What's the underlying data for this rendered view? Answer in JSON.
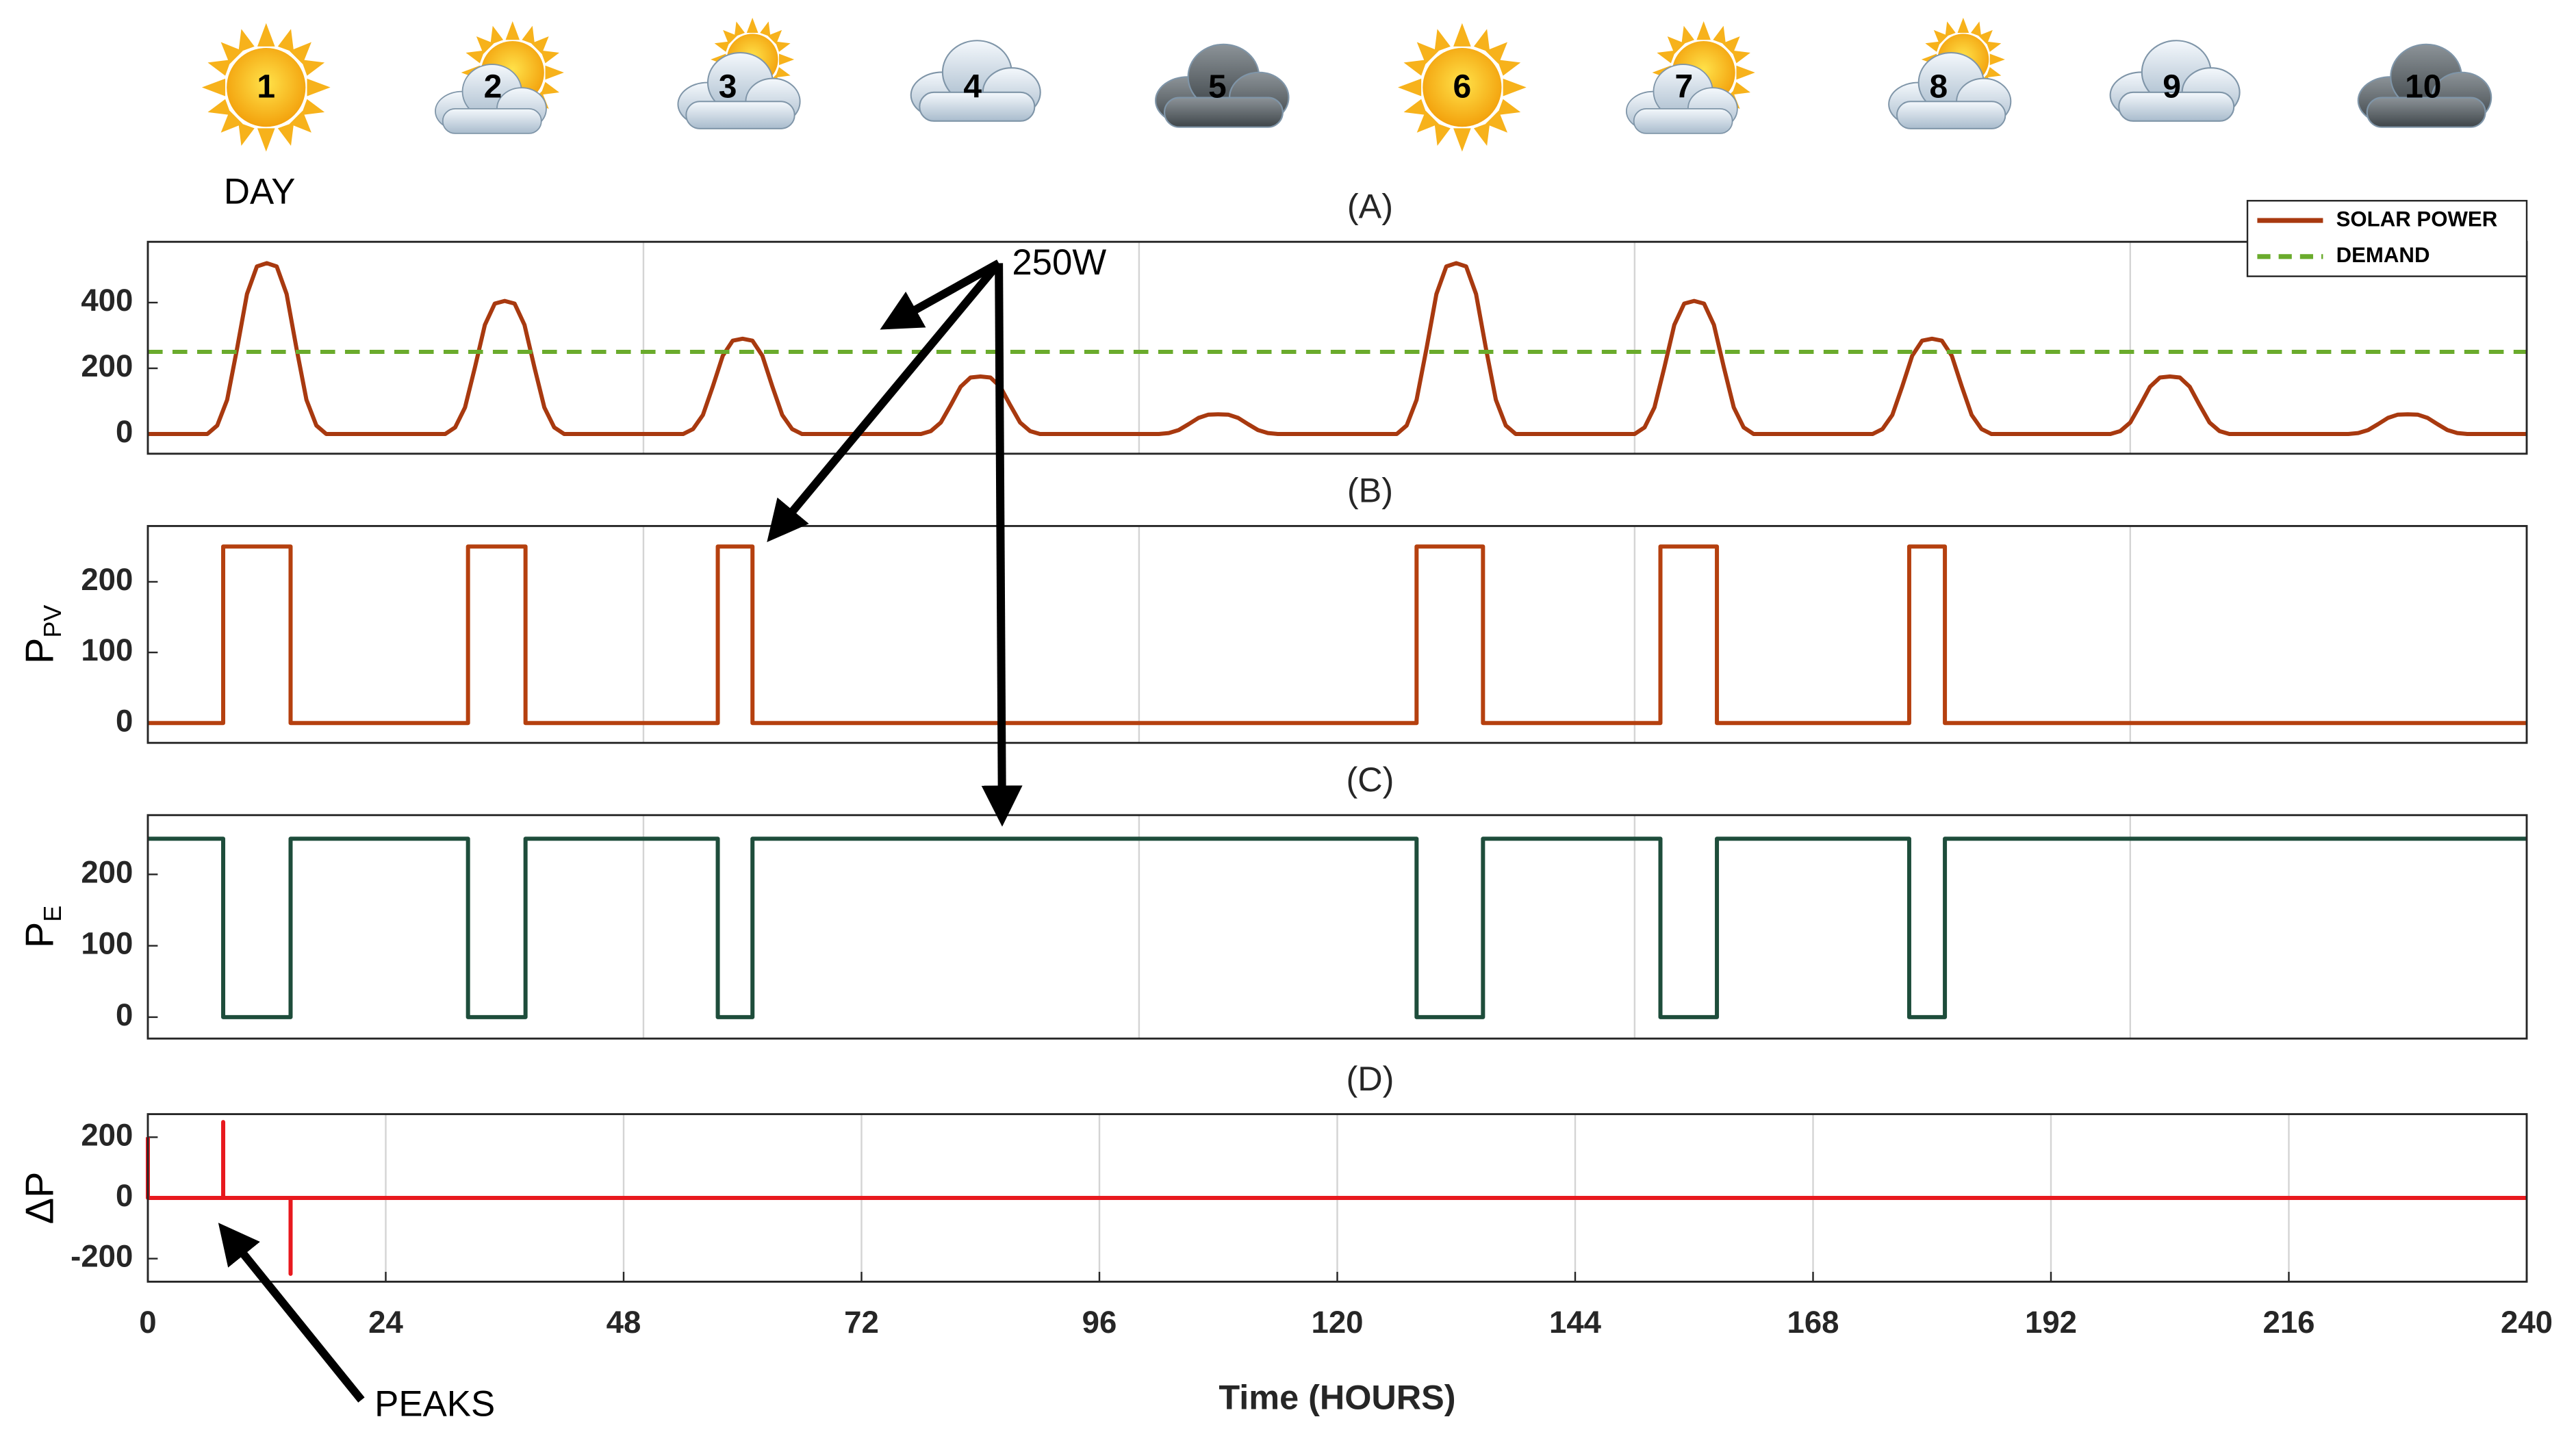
{
  "header": {
    "days": [
      "1",
      "2",
      "3",
      "4",
      "5",
      "6",
      "7",
      "8",
      "9",
      "10"
    ],
    "day_label": "DAY"
  },
  "annotations": {
    "demand_label": "250W",
    "peaks_label": "PEAKS"
  },
  "chart_data": [
    {
      "type": "line",
      "title": "(A)",
      "xlim": [
        0,
        240
      ],
      "xticks": [
        50,
        100,
        150,
        200
      ],
      "xtick_labels": false,
      "ylim": [
        -60,
        585
      ],
      "yticks": [
        0,
        200,
        400
      ],
      "grid": "x",
      "legend": "upper right",
      "series": [
        {
          "name": "SOLAR POWER",
          "color": "#a8390f",
          "dash": false,
          "x": [
            0,
            6,
            7,
            8,
            9,
            10,
            11,
            12,
            13,
            14,
            15,
            16,
            17,
            18,
            30,
            31,
            32,
            33,
            34,
            35,
            36,
            37,
            38,
            39,
            40,
            41,
            42,
            54,
            55,
            56,
            57,
            58,
            59,
            60,
            61,
            62,
            63,
            64,
            65,
            66,
            78,
            79,
            80,
            81,
            82,
            83,
            84,
            85,
            86,
            87,
            88,
            89,
            90,
            102,
            103,
            104,
            105,
            106,
            107,
            108,
            109,
            110,
            111,
            112,
            113,
            114,
            126,
            127,
            128,
            129,
            130,
            131,
            132,
            133,
            134,
            135,
            136,
            137,
            138,
            150,
            151,
            152,
            153,
            154,
            155,
            156,
            157,
            158,
            159,
            160,
            161,
            162,
            174,
            175,
            176,
            177,
            178,
            179,
            180,
            181,
            182,
            183,
            184,
            185,
            186,
            198,
            199,
            200,
            201,
            202,
            203,
            204,
            205,
            206,
            207,
            208,
            209,
            210,
            222,
            223,
            224,
            225,
            226,
            227,
            228,
            229,
            230,
            231,
            232,
            233,
            234,
            240
          ],
          "values": [
            0,
            0,
            26,
            104,
            260,
            426,
            510,
            520,
            510,
            426,
            260,
            104,
            26,
            0,
            0,
            20,
            81,
            203,
            332,
            397,
            405,
            397,
            332,
            203,
            81,
            20,
            0,
            0,
            15,
            58,
            145,
            238,
            284,
            290,
            284,
            238,
            145,
            58,
            15,
            0,
            0,
            9,
            35,
            88,
            144,
            172,
            175,
            172,
            144,
            88,
            35,
            9,
            0,
            0,
            3,
            12,
            30,
            49,
            59,
            60,
            59,
            49,
            30,
            12,
            3,
            0,
            0,
            26,
            104,
            260,
            426,
            510,
            520,
            510,
            426,
            260,
            104,
            26,
            0,
            0,
            20,
            81,
            203,
            332,
            397,
            405,
            397,
            332,
            203,
            81,
            20,
            0,
            0,
            15,
            58,
            145,
            238,
            284,
            290,
            284,
            238,
            145,
            58,
            15,
            0,
            0,
            9,
            35,
            88,
            144,
            172,
            175,
            172,
            144,
            88,
            35,
            9,
            0,
            0,
            3,
            12,
            30,
            49,
            59,
            60,
            59,
            49,
            30,
            12,
            3,
            0,
            0
          ]
        },
        {
          "name": "DEMAND",
          "color": "#6aab2c",
          "dash": true,
          "x": [
            0,
            240
          ],
          "values": [
            250,
            250
          ]
        }
      ]
    },
    {
      "type": "line",
      "title": "(B)",
      "ylabel": "P",
      "ylabel_sub": "PV",
      "xlim": [
        0,
        240
      ],
      "xticks": [
        50,
        100,
        150,
        200
      ],
      "xtick_labels": false,
      "ylim": [
        -28,
        279
      ],
      "yticks": [
        0,
        100,
        200
      ],
      "grid": "x",
      "series": [
        {
          "color": "#b5400f",
          "dash": false,
          "x": [
            0,
            7.6,
            7.6,
            14.4,
            14.4,
            32.3,
            32.3,
            38.1,
            38.1,
            57.5,
            57.5,
            61,
            61,
            128,
            128,
            134.7,
            134.7,
            152.6,
            152.6,
            158.3,
            158.3,
            177.7,
            177.7,
            181.3,
            181.3,
            240
          ],
          "values": [
            0,
            0,
            250,
            250,
            0,
            0,
            250,
            250,
            0,
            0,
            250,
            250,
            0,
            0,
            250,
            250,
            0,
            0,
            250,
            250,
            0,
            0,
            250,
            250,
            0,
            0
          ]
        }
      ]
    },
    {
      "type": "line",
      "title": "(C)",
      "ylabel": "P",
      "ylabel_sub": "E",
      "xlim": [
        0,
        240
      ],
      "xticks": [
        50,
        100,
        150,
        200
      ],
      "xtick_labels": false,
      "ylim": [
        -30,
        283
      ],
      "yticks": [
        0,
        100,
        200
      ],
      "grid": "x",
      "series": [
        {
          "color": "#1e4d3b",
          "dash": false,
          "x": [
            0,
            7.6,
            7.6,
            14.4,
            14.4,
            32.3,
            32.3,
            38.1,
            38.1,
            57.5,
            57.5,
            61,
            61,
            128,
            128,
            134.7,
            134.7,
            152.6,
            152.6,
            158.3,
            158.3,
            177.7,
            177.7,
            181.3,
            181.3,
            240
          ],
          "values": [
            250,
            250,
            0,
            0,
            250,
            250,
            0,
            0,
            250,
            250,
            0,
            0,
            250,
            250,
            0,
            0,
            250,
            250,
            0,
            0,
            250,
            250,
            0,
            0,
            250,
            250
          ]
        }
      ]
    },
    {
      "type": "line",
      "title": "(D)",
      "ylabel": "ΔP",
      "xlabel": "Time (HOURS)",
      "xlim": [
        0,
        240
      ],
      "xticks": [
        0,
        24,
        48,
        72,
        96,
        120,
        144,
        168,
        192,
        216,
        240
      ],
      "xtick_labels": true,
      "ylim": [
        -276,
        276
      ],
      "yticks": [
        -200,
        0,
        200
      ],
      "grid": "x",
      "series": [
        {
          "color": "#e8191e",
          "dash": false,
          "x": [
            0,
            0,
            7.6,
            7.6,
            7.6,
            14.4,
            14.4,
            14.4,
            240
          ],
          "values": [
            200,
            0,
            0,
            250,
            0,
            0,
            -250,
            0,
            0
          ]
        }
      ]
    }
  ]
}
